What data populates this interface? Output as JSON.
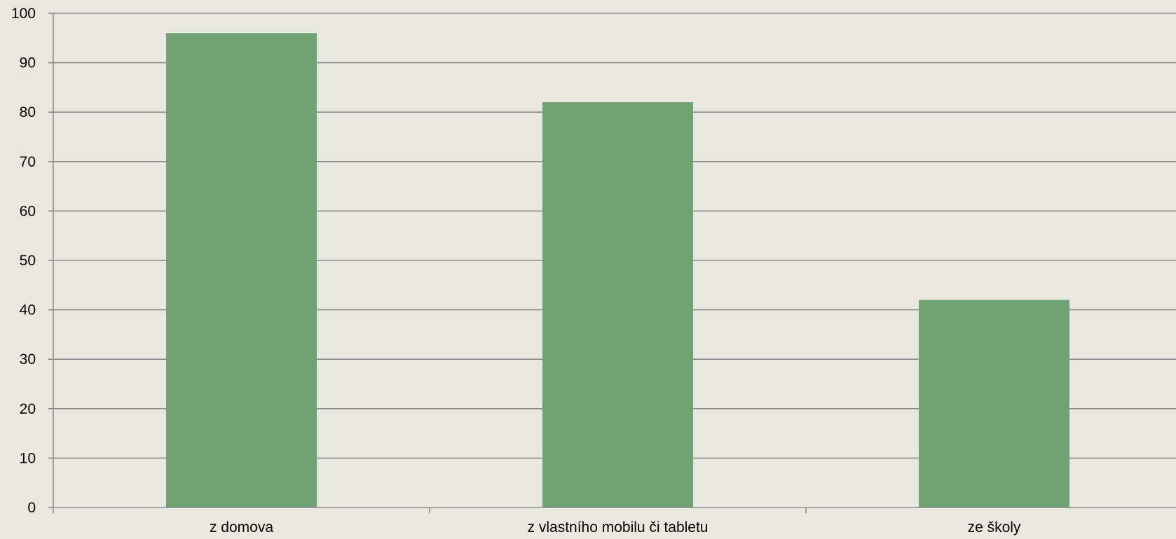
{
  "chart_data": {
    "type": "bar",
    "categories": [
      "z domova",
      "z vlastního mobilu či tabletu",
      "ze školy"
    ],
    "values": [
      96,
      82,
      42
    ],
    "ylim": [
      0,
      100
    ],
    "y_ticks": [
      0,
      10,
      20,
      30,
      40,
      50,
      60,
      70,
      80,
      90,
      100
    ],
    "grid": true,
    "legend": "none"
  },
  "colors": {
    "background": "#E9E8DE",
    "bar": "#71A275",
    "gridline": "#8A8A8A",
    "axis": "#8A8A8A",
    "text": "#000000"
  }
}
